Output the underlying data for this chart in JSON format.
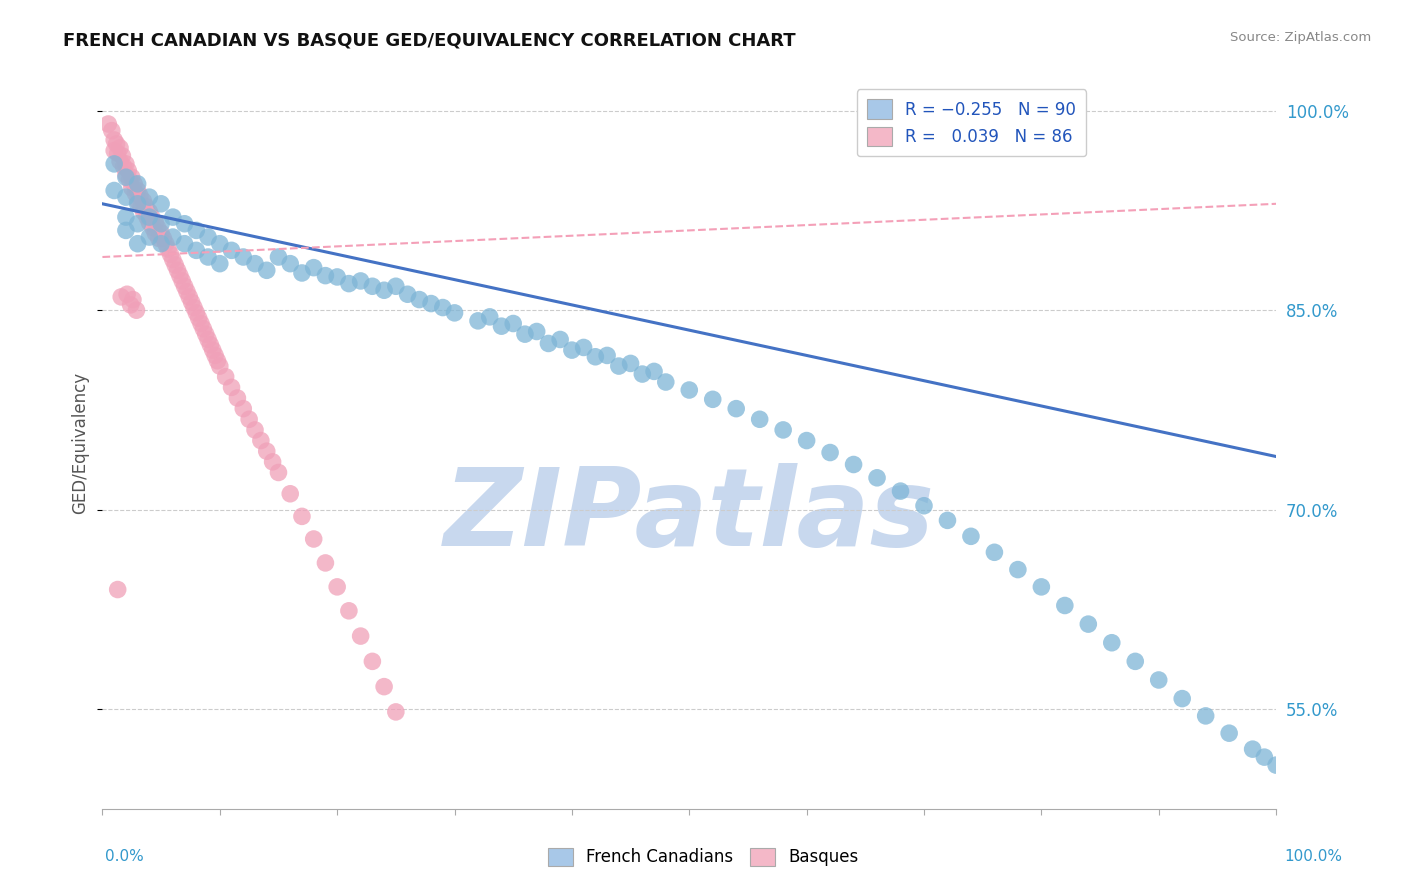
{
  "title": "FRENCH CANADIAN VS BASQUE GED/EQUIVALENCY CORRELATION CHART",
  "source_text": "Source: ZipAtlas.com",
  "ylabel": "GED/Equivalency",
  "ylabel_right_ticks": [
    "55.0%",
    "70.0%",
    "85.0%",
    "100.0%"
  ],
  "ylabel_right_values": [
    0.55,
    0.7,
    0.85,
    1.0
  ],
  "watermark": "ZIPatlas",
  "watermark_color": "#c8d8ee",
  "blue_color": "#7eb5d6",
  "pink_color": "#f0a0b8",
  "blue_line_color": "#4472c4",
  "pink_line_color": "#f4a0b8",
  "background_color": "#ffffff",
  "grid_color": "#cccccc",
  "blue_scatter_x": [
    0.01,
    0.01,
    0.02,
    0.02,
    0.02,
    0.02,
    0.03,
    0.03,
    0.03,
    0.03,
    0.04,
    0.04,
    0.04,
    0.05,
    0.05,
    0.05,
    0.06,
    0.06,
    0.07,
    0.07,
    0.08,
    0.08,
    0.09,
    0.09,
    0.1,
    0.1,
    0.11,
    0.12,
    0.13,
    0.14,
    0.15,
    0.16,
    0.17,
    0.18,
    0.19,
    0.2,
    0.21,
    0.22,
    0.23,
    0.24,
    0.25,
    0.26,
    0.27,
    0.28,
    0.29,
    0.3,
    0.32,
    0.34,
    0.36,
    0.38,
    0.4,
    0.42,
    0.44,
    0.46,
    0.48,
    0.5,
    0.52,
    0.54,
    0.56,
    0.58,
    0.6,
    0.62,
    0.64,
    0.66,
    0.68,
    0.7,
    0.72,
    0.74,
    0.76,
    0.78,
    0.8,
    0.82,
    0.84,
    0.86,
    0.88,
    0.9,
    0.92,
    0.94,
    0.96,
    0.98,
    0.99,
    1.0,
    0.33,
    0.35,
    0.37,
    0.39,
    0.41,
    0.43,
    0.45,
    0.47
  ],
  "blue_scatter_y": [
    0.96,
    0.94,
    0.95,
    0.935,
    0.92,
    0.91,
    0.945,
    0.93,
    0.915,
    0.9,
    0.935,
    0.92,
    0.905,
    0.93,
    0.915,
    0.9,
    0.92,
    0.905,
    0.915,
    0.9,
    0.91,
    0.895,
    0.905,
    0.89,
    0.9,
    0.885,
    0.895,
    0.89,
    0.885,
    0.88,
    0.89,
    0.885,
    0.878,
    0.882,
    0.876,
    0.875,
    0.87,
    0.872,
    0.868,
    0.865,
    0.868,
    0.862,
    0.858,
    0.855,
    0.852,
    0.848,
    0.842,
    0.838,
    0.832,
    0.825,
    0.82,
    0.815,
    0.808,
    0.802,
    0.796,
    0.79,
    0.783,
    0.776,
    0.768,
    0.76,
    0.752,
    0.743,
    0.734,
    0.724,
    0.714,
    0.703,
    0.692,
    0.68,
    0.668,
    0.655,
    0.642,
    0.628,
    0.614,
    0.6,
    0.586,
    0.572,
    0.558,
    0.545,
    0.532,
    0.52,
    0.514,
    0.508,
    0.845,
    0.84,
    0.834,
    0.828,
    0.822,
    0.816,
    0.81,
    0.804
  ],
  "pink_scatter_x": [
    0.005,
    0.008,
    0.01,
    0.01,
    0.012,
    0.013,
    0.015,
    0.015,
    0.017,
    0.018,
    0.02,
    0.02,
    0.022,
    0.023,
    0.025,
    0.025,
    0.027,
    0.028,
    0.03,
    0.03,
    0.032,
    0.033,
    0.035,
    0.035,
    0.037,
    0.038,
    0.04,
    0.04,
    0.042,
    0.043,
    0.045,
    0.045,
    0.047,
    0.048,
    0.05,
    0.052,
    0.054,
    0.056,
    0.058,
    0.06,
    0.062,
    0.064,
    0.066,
    0.068,
    0.07,
    0.072,
    0.074,
    0.076,
    0.078,
    0.08,
    0.082,
    0.084,
    0.086,
    0.088,
    0.09,
    0.092,
    0.094,
    0.096,
    0.098,
    0.1,
    0.105,
    0.11,
    0.115,
    0.12,
    0.125,
    0.13,
    0.135,
    0.14,
    0.145,
    0.15,
    0.16,
    0.17,
    0.18,
    0.19,
    0.2,
    0.21,
    0.22,
    0.23,
    0.24,
    0.25,
    0.013,
    0.016,
    0.021,
    0.024,
    0.026,
    0.029
  ],
  "pink_scatter_y": [
    0.99,
    0.985,
    0.978,
    0.97,
    0.975,
    0.968,
    0.972,
    0.962,
    0.966,
    0.958,
    0.96,
    0.952,
    0.955,
    0.948,
    0.95,
    0.942,
    0.945,
    0.938,
    0.94,
    0.932,
    0.936,
    0.928,
    0.932,
    0.924,
    0.928,
    0.92,
    0.924,
    0.916,
    0.92,
    0.912,
    0.916,
    0.908,
    0.912,
    0.904,
    0.908,
    0.904,
    0.9,
    0.896,
    0.892,
    0.888,
    0.884,
    0.88,
    0.876,
    0.872,
    0.868,
    0.864,
    0.86,
    0.856,
    0.852,
    0.848,
    0.844,
    0.84,
    0.836,
    0.832,
    0.828,
    0.824,
    0.82,
    0.816,
    0.812,
    0.808,
    0.8,
    0.792,
    0.784,
    0.776,
    0.768,
    0.76,
    0.752,
    0.744,
    0.736,
    0.728,
    0.712,
    0.695,
    0.678,
    0.66,
    0.642,
    0.624,
    0.605,
    0.586,
    0.567,
    0.548,
    0.64,
    0.86,
    0.862,
    0.854,
    0.858,
    0.85
  ],
  "blue_trend_x": [
    0.0,
    1.0
  ],
  "blue_trend_y": [
    0.93,
    0.74
  ],
  "pink_trend_x": [
    0.0,
    1.0
  ],
  "pink_trend_y": [
    0.89,
    0.93
  ],
  "xmin": 0.0,
  "xmax": 1.0,
  "ymin": 0.475,
  "ymax": 1.025
}
